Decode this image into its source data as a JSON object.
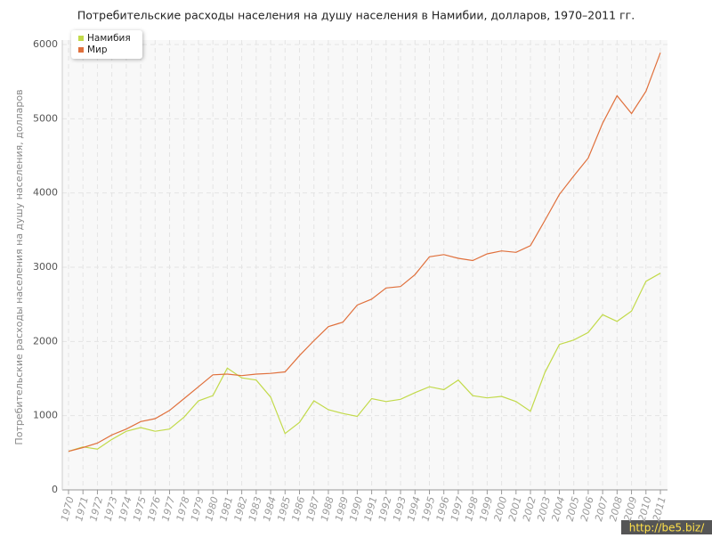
{
  "chart_data": {
    "type": "line",
    "title": "Потребительские расходы населения на душу населения в Намибии, долларов, 1970–2011 гг.",
    "y_label": "Потребительские расходы населения на душу населения, долларов",
    "categories": [
      "1970",
      "1971",
      "1972",
      "1973",
      "1974",
      "1975",
      "1976",
      "1977",
      "1978",
      "1979",
      "1980",
      "1981",
      "1982",
      "1983",
      "1984",
      "1985",
      "1986",
      "1987",
      "1988",
      "1989",
      "1990",
      "1991",
      "1992",
      "1993",
      "1994",
      "1995",
      "1996",
      "1997",
      "1998",
      "1999",
      "2000",
      "2001",
      "2002",
      "2003",
      "2004",
      "2005",
      "2006",
      "2007",
      "2008",
      "2009",
      "2010",
      "2011"
    ],
    "series": [
      {
        "name": "Намибия",
        "color": "#c2da4a",
        "values": [
          520,
          580,
          550,
          680,
          790,
          840,
          790,
          820,
          980,
          1200,
          1270,
          1640,
          1510,
          1480,
          1250,
          760,
          910,
          1200,
          1080,
          1030,
          990,
          1230,
          1190,
          1220,
          1310,
          1390,
          1350,
          1480,
          1270,
          1240,
          1260,
          1190,
          1060,
          1580,
          1960,
          2020,
          2120,
          2360,
          2270,
          2410,
          2810,
          2920
        ]
      },
      {
        "name": "Мир",
        "color": "#e0703c",
        "values": [
          520,
          570,
          630,
          740,
          820,
          920,
          960,
          1070,
          1230,
          1390,
          1550,
          1560,
          1540,
          1560,
          1570,
          1590,
          1810,
          2010,
          2200,
          2260,
          2490,
          2570,
          2720,
          2740,
          2900,
          3140,
          3170,
          3120,
          3090,
          3180,
          3220,
          3200,
          3290,
          3630,
          3980,
          4230,
          4470,
          4940,
          5310,
          5070,
          5370,
          5890
        ]
      }
    ],
    "ylim": [
      0,
      6000
    ],
    "yticks": [
      0,
      1000,
      2000,
      3000,
      4000,
      5000,
      6000
    ],
    "grid": true,
    "legend": "top-left",
    "watermark": "http://be5.biz/"
  }
}
